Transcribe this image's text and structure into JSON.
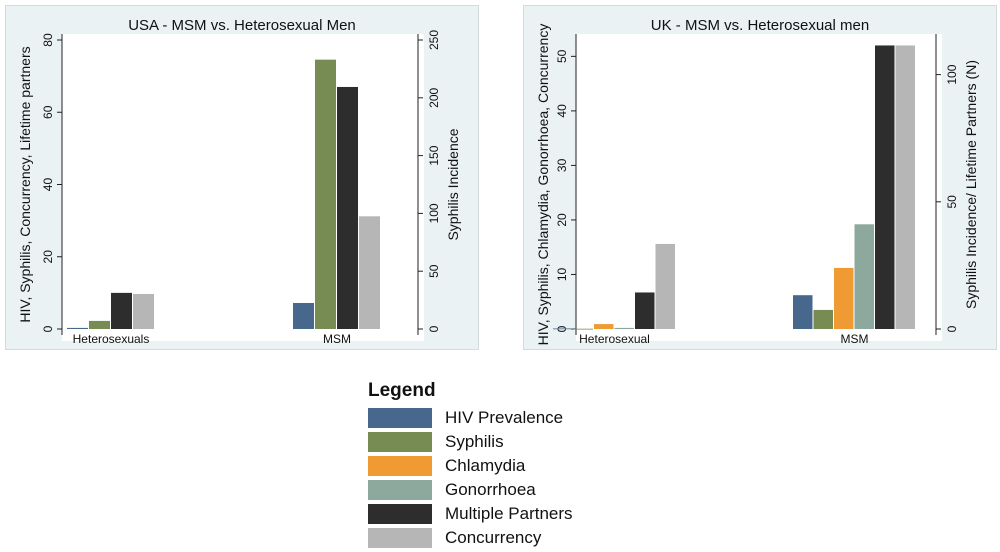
{
  "chart_data": [
    {
      "type": "bar",
      "title": "USA - MSM vs. Heterosexual Men",
      "ylabel": "HIV, Syphilis, Concurrency, Lifetime partners",
      "y2label": "Syphilis Incidence",
      "ylim": [
        0,
        80
      ],
      "y2lim": [
        0,
        250
      ],
      "yticks": [
        0,
        20,
        40,
        60,
        80
      ],
      "y2ticks": [
        0,
        50,
        100,
        150,
        200,
        250
      ],
      "categories": [
        "Heterosexuals",
        "MSM"
      ],
      "series": [
        {
          "name": "HIV Prevalence",
          "axis": "left",
          "values": [
            0.3,
            7.2
          ]
        },
        {
          "name": "Syphilis",
          "axis": "right",
          "values": [
            7,
            233
          ]
        },
        {
          "name": "Multiple Partners",
          "axis": "left",
          "values": [
            10,
            67
          ]
        },
        {
          "name": "Concurrency",
          "axis": "left",
          "values": [
            9.7,
            31.2
          ]
        }
      ],
      "grid": false
    },
    {
      "type": "bar",
      "title": "UK - MSM vs. Heterosexual men",
      "ylabel": "HIV, Syphilis, Chlamydia, Gonorrhoea, Concurrency",
      "y2label": "Syphilis Incidence/ Lifetime Partners (N)",
      "ylim": [
        0,
        53
      ],
      "y2lim": [
        0,
        113.6
      ],
      "yticks": [
        0,
        10,
        20,
        30,
        40,
        50
      ],
      "y2ticks": [
        0,
        50,
        100
      ],
      "categories": [
        "Heterosexual",
        "MSM"
      ],
      "series": [
        {
          "name": "HIV Prevalence",
          "axis": "left",
          "values": [
            0.1,
            6.2
          ]
        },
        {
          "name": "Syphilis",
          "axis": "right",
          "values": [
            0.1,
            7.5
          ]
        },
        {
          "name": "Chlamydia",
          "axis": "left",
          "values": [
            0.9,
            11.2
          ]
        },
        {
          "name": "Gonorrhoea",
          "axis": "left",
          "values": [
            0.2,
            19.2
          ]
        },
        {
          "name": "Multiple Partners",
          "axis": "left",
          "values": [
            6.7,
            52
          ]
        },
        {
          "name": "Concurrency",
          "axis": "left",
          "values": [
            15.6,
            52
          ]
        }
      ],
      "grid": false
    }
  ],
  "legend": {
    "title": "Legend",
    "items": [
      {
        "label": "HIV Prevalence",
        "color": "#48678d"
      },
      {
        "label": "Syphilis",
        "color": "#768c52"
      },
      {
        "label": "Chlamydia",
        "color": "#ef9a32"
      },
      {
        "label": "Gonorrhoea",
        "color": "#8da89c"
      },
      {
        "label": "Multiple Partners",
        "color": "#2d2d2d"
      },
      {
        "label": "Concurrency",
        "color": "#b6b6b6"
      }
    ]
  }
}
